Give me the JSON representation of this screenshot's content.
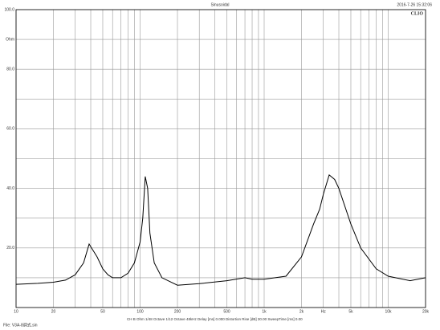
{
  "header": {
    "title": "Sinusoidal",
    "timestamp": "2016-7-26 15:32:06",
    "logo": "CLIO"
  },
  "chart_data": {
    "type": "line",
    "log_x": true,
    "xlim": [
      10,
      20000
    ],
    "ylim": [
      0,
      100
    ],
    "xticks": [
      10,
      20,
      50,
      100,
      200,
      500,
      {
        "value": 1000,
        "label": "1k"
      },
      {
        "value": 2000,
        "label": "2k"
      },
      {
        "value": 3000,
        "label": "Hz"
      },
      {
        "value": 5000,
        "label": "5k"
      },
      {
        "value": 10000,
        "label": "10k"
      },
      {
        "value": 20000,
        "label": "20k"
      }
    ],
    "xgrid": [
      10,
      20,
      30,
      40,
      50,
      60,
      70,
      80,
      90,
      100,
      200,
      300,
      400,
      500,
      600,
      700,
      800,
      900,
      1000,
      2000,
      3000,
      4000,
      5000,
      6000,
      7000,
      8000,
      9000,
      10000,
      20000
    ],
    "yticks": [
      {
        "value": 20,
        "label": "20.0"
      },
      {
        "value": 40,
        "label": "40.0"
      },
      {
        "value": 60,
        "label": "60.0"
      },
      {
        "value": 80,
        "label": "80.0"
      },
      {
        "value": 90,
        "label": "Ohm"
      },
      {
        "value": 100,
        "label": "100.0"
      }
    ],
    "ygrid": [
      0,
      10,
      20,
      30,
      40,
      50,
      60,
      70,
      80,
      90,
      100
    ],
    "series": [
      {
        "color": "#000000",
        "x": [
          10,
          15,
          20,
          25,
          30,
          35,
          38.8,
          42,
          45,
          50,
          55,
          60,
          70,
          80,
          90,
          100,
          105,
          110,
          115,
          120,
          130,
          150,
          200,
          300,
          500,
          700,
          800,
          1000,
          1500,
          2000,
          2500,
          2800,
          3000,
          3345,
          3700,
          4000,
          5000,
          6000,
          8000,
          10000,
          15000,
          20000
        ],
        "values": [
          7.8,
          8.1,
          8.5,
          9.2,
          11,
          15,
          21.3,
          19,
          17,
          13,
          11,
          10,
          10,
          11.5,
          15,
          22,
          30,
          44,
          40,
          25,
          15,
          10,
          7.5,
          8,
          9,
          10,
          9.5,
          9.5,
          10.5,
          17,
          28,
          33,
          38,
          44.5,
          43,
          40,
          28,
          20,
          13,
          10.5,
          9,
          10
        ]
      }
    ]
  },
  "footer": {
    "settings": "CH B   Ohm   1/48 Octave   1/12 Octave   48kHz   Delay [ms] 0.000   Distortion Rise [dB] 30.00   SweepTime [ms] 0.00",
    "file": "File: V3A-8调式.sin"
  }
}
